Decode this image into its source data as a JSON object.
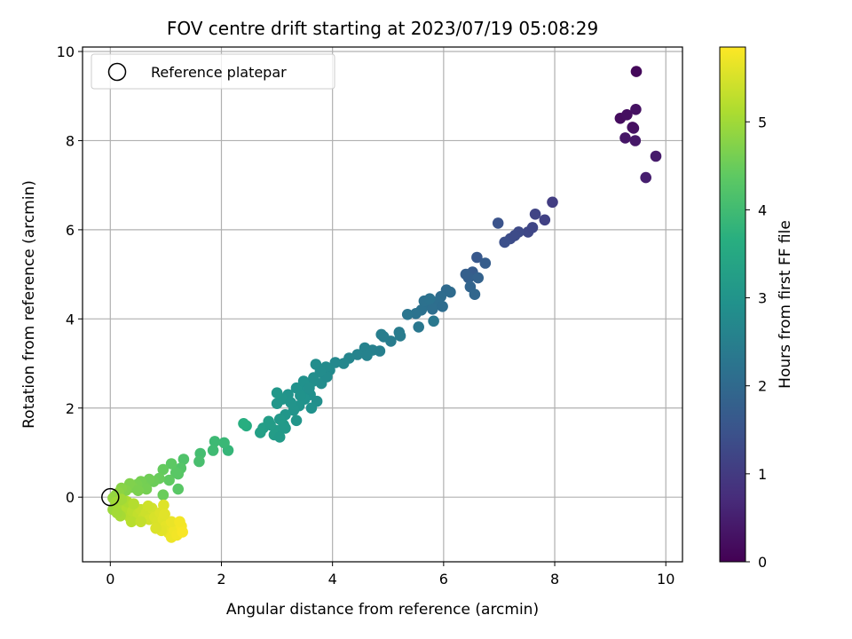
{
  "chart_data": {
    "type": "scatter",
    "title": "FOV centre drift starting at 2023/07/19 05:08:29",
    "xlabel": "Angular distance from reference (arcmin)",
    "ylabel": "Rotation from reference (arcmin)",
    "xlim": [
      -0.5,
      10.3
    ],
    "ylim": [
      -1.45,
      10.1
    ],
    "xticks": [
      0,
      2,
      4,
      6,
      8,
      10
    ],
    "yticks": [
      0,
      2,
      4,
      6,
      8,
      10
    ],
    "grid": true,
    "legend": {
      "placement": "top-left",
      "entries": [
        "Reference platepar"
      ]
    },
    "reference_point": {
      "x": 0,
      "y": 0
    },
    "colorbar": {
      "label": "Hours from first FF file",
      "range": [
        0,
        5.85
      ],
      "ticks": [
        0,
        1,
        2,
        3,
        4,
        5
      ],
      "colormap": "viridis"
    },
    "series": [
      {
        "values": [
          [
            9.47,
            9.55,
            0.12
          ],
          [
            9.18,
            8.5,
            0.18
          ],
          [
            9.3,
            8.58,
            0.22
          ],
          [
            9.46,
            8.7,
            0.27
          ],
          [
            9.42,
            8.28,
            0.3
          ],
          [
            9.27,
            8.06,
            0.34
          ],
          [
            9.45,
            8.0,
            0.38
          ],
          [
            9.82,
            7.65,
            0.44
          ],
          [
            9.64,
            7.17,
            0.48
          ],
          [
            9.4,
            8.3,
            0.25
          ],
          [
            7.96,
            6.62,
            1.05
          ],
          [
            7.82,
            6.22,
            1.12
          ],
          [
            7.65,
            6.35,
            1.18
          ],
          [
            7.52,
            5.95,
            1.24
          ],
          [
            7.35,
            5.95,
            1.3
          ],
          [
            7.2,
            5.8,
            1.36
          ],
          [
            7.1,
            5.72,
            1.42
          ],
          [
            6.98,
            6.15,
            1.48
          ],
          [
            7.6,
            6.05,
            1.22
          ],
          [
            7.28,
            5.87,
            1.33
          ],
          [
            6.6,
            5.38,
            1.6
          ],
          [
            6.52,
            5.05,
            1.68
          ],
          [
            6.75,
            5.25,
            1.72
          ],
          [
            6.45,
            4.92,
            1.78
          ],
          [
            6.62,
            4.92,
            1.82
          ],
          [
            6.48,
            4.72,
            1.88
          ],
          [
            6.56,
            4.55,
            1.94
          ],
          [
            6.4,
            5.0,
            1.75
          ],
          [
            6.05,
            4.65,
            2.02
          ],
          [
            5.95,
            4.5,
            2.06
          ],
          [
            5.88,
            4.38,
            2.1
          ],
          [
            5.72,
            4.32,
            2.14
          ],
          [
            5.6,
            4.2,
            2.18
          ],
          [
            5.5,
            4.12,
            2.22
          ],
          [
            5.35,
            4.1,
            2.26
          ],
          [
            5.8,
            4.22,
            2.12
          ],
          [
            5.65,
            4.4,
            2.16
          ],
          [
            5.55,
            3.82,
            2.3
          ],
          [
            5.82,
            3.95,
            2.34
          ],
          [
            6.12,
            4.6,
            2.04
          ],
          [
            5.98,
            4.28,
            2.08
          ],
          [
            5.75,
            4.45,
            2.2
          ],
          [
            5.2,
            3.7,
            2.4
          ],
          [
            5.05,
            3.5,
            2.44
          ],
          [
            4.88,
            3.65,
            2.48
          ],
          [
            4.72,
            3.3,
            2.52
          ],
          [
            4.58,
            3.35,
            2.56
          ],
          [
            4.45,
            3.2,
            2.6
          ],
          [
            4.3,
            3.12,
            2.64
          ],
          [
            4.2,
            3.0,
            2.68
          ],
          [
            4.85,
            3.28,
            2.5
          ],
          [
            4.62,
            3.18,
            2.58
          ],
          [
            5.22,
            3.62,
            2.42
          ],
          [
            4.92,
            3.6,
            2.46
          ],
          [
            4.05,
            3.02,
            2.72
          ],
          [
            3.95,
            2.85,
            2.76
          ],
          [
            3.85,
            2.75,
            2.8
          ],
          [
            3.7,
            2.98,
            2.84
          ],
          [
            3.65,
            2.6,
            2.88
          ],
          [
            3.55,
            2.5,
            2.9
          ],
          [
            3.45,
            2.4,
            2.92
          ],
          [
            3.35,
            2.45,
            2.95
          ],
          [
            3.2,
            2.3,
            2.98
          ],
          [
            3.1,
            2.2,
            3.02
          ],
          [
            3.0,
            2.1,
            3.05
          ],
          [
            3.8,
            2.55,
            2.82
          ],
          [
            3.9,
            2.7,
            2.78
          ],
          [
            3.6,
            2.3,
            2.9
          ],
          [
            3.5,
            2.2,
            2.94
          ],
          [
            3.4,
            2.05,
            2.97
          ],
          [
            3.3,
            1.95,
            3.0
          ],
          [
            3.15,
            1.85,
            3.06
          ],
          [
            3.05,
            1.75,
            3.1
          ],
          [
            3.72,
            2.15,
            2.88
          ],
          [
            3.62,
            2.0,
            2.93
          ],
          [
            3.25,
            2.12,
            3.0
          ],
          [
            3.0,
            2.34,
            3.08
          ],
          [
            3.35,
            1.72,
            3.03
          ],
          [
            3.48,
            2.6,
            2.92
          ],
          [
            3.58,
            2.45,
            2.89
          ],
          [
            3.66,
            2.68,
            2.86
          ],
          [
            3.88,
            2.92,
            2.79
          ],
          [
            3.78,
            2.82,
            2.81
          ],
          [
            3.42,
            2.28,
            2.96
          ],
          [
            3.12,
            1.62,
            3.14
          ],
          [
            2.98,
            1.5,
            3.18
          ],
          [
            2.85,
            1.7,
            3.22
          ],
          [
            2.75,
            1.55,
            3.26
          ],
          [
            2.95,
            1.4,
            3.2
          ],
          [
            3.05,
            1.35,
            3.16
          ],
          [
            2.7,
            1.45,
            3.28
          ],
          [
            3.15,
            1.55,
            3.12
          ],
          [
            2.88,
            1.62,
            3.2
          ],
          [
            2.45,
            1.6,
            3.6
          ],
          [
            2.4,
            1.65,
            3.65
          ],
          [
            2.12,
            1.05,
            3.85
          ],
          [
            2.05,
            1.22,
            3.9
          ],
          [
            1.88,
            1.25,
            3.95
          ],
          [
            1.85,
            1.05,
            3.98
          ],
          [
            1.62,
            0.98,
            4.05
          ],
          [
            1.6,
            0.8,
            4.1
          ],
          [
            1.32,
            0.85,
            4.2
          ],
          [
            1.27,
            0.65,
            4.25
          ],
          [
            1.22,
            0.52,
            4.3
          ],
          [
            1.18,
            0.55,
            4.32
          ],
          [
            1.1,
            0.75,
            4.36
          ],
          [
            1.06,
            0.38,
            4.4
          ],
          [
            0.95,
            0.62,
            4.44
          ],
          [
            0.88,
            0.42,
            4.48
          ],
          [
            0.78,
            0.35,
            4.52
          ],
          [
            0.7,
            0.4,
            4.55
          ],
          [
            0.6,
            0.25,
            4.58
          ],
          [
            0.55,
            0.35,
            4.6
          ],
          [
            0.48,
            0.28,
            4.64
          ],
          [
            0.4,
            0.22,
            4.68
          ],
          [
            0.35,
            0.3,
            4.7
          ],
          [
            0.28,
            0.15,
            4.74
          ],
          [
            0.2,
            0.2,
            4.78
          ],
          [
            0.15,
            0.1,
            4.82
          ],
          [
            0.1,
            0.05,
            4.86
          ],
          [
            0.05,
            -0.02,
            4.9
          ],
          [
            1.22,
            0.18,
            4.32
          ],
          [
            0.95,
            0.05,
            4.5
          ],
          [
            0.65,
            0.18,
            4.6
          ],
          [
            0.5,
            0.15,
            4.66
          ],
          [
            0.05,
            -0.28,
            4.95
          ],
          [
            0.1,
            -0.12,
            5.0
          ],
          [
            0.15,
            -0.2,
            5.04
          ],
          [
            0.2,
            -0.3,
            5.08
          ],
          [
            0.25,
            -0.38,
            5.12
          ],
          [
            0.3,
            -0.25,
            5.16
          ],
          [
            0.35,
            -0.45,
            5.2
          ],
          [
            0.4,
            -0.32,
            5.24
          ],
          [
            0.45,
            -0.5,
            5.28
          ],
          [
            0.5,
            -0.38,
            5.3
          ],
          [
            0.55,
            -0.28,
            5.34
          ],
          [
            0.6,
            -0.45,
            5.38
          ],
          [
            0.65,
            -0.35,
            5.4
          ],
          [
            0.7,
            -0.5,
            5.44
          ],
          [
            0.75,
            -0.25,
            5.46
          ],
          [
            0.8,
            -0.45,
            5.5
          ],
          [
            0.85,
            -0.55,
            5.52
          ],
          [
            0.3,
            -0.1,
            5.1
          ],
          [
            0.2,
            -0.05,
            5.02
          ],
          [
            0.38,
            -0.55,
            5.22
          ],
          [
            0.55,
            -0.55,
            5.32
          ],
          [
            0.68,
            -0.2,
            5.42
          ],
          [
            0.18,
            -0.42,
            5.06
          ],
          [
            0.12,
            -0.35,
            5.03
          ],
          [
            0.42,
            -0.15,
            5.18
          ],
          [
            0.9,
            -0.35,
            5.55
          ],
          [
            0.95,
            -0.5,
            5.58
          ],
          [
            1.0,
            -0.65,
            5.62
          ],
          [
            1.05,
            -0.8,
            5.66
          ],
          [
            1.1,
            -0.9,
            5.7
          ],
          [
            1.15,
            -0.75,
            5.72
          ],
          [
            1.2,
            -0.85,
            5.75
          ],
          [
            1.28,
            -0.65,
            5.78
          ],
          [
            1.3,
            -0.78,
            5.8
          ],
          [
            0.92,
            -0.75,
            5.6
          ],
          [
            0.96,
            -0.18,
            5.57
          ],
          [
            1.1,
            -0.55,
            5.68
          ],
          [
            1.25,
            -0.55,
            5.76
          ],
          [
            0.82,
            -0.7,
            5.54
          ],
          [
            0.98,
            -0.38,
            5.59
          ]
        ]
      }
    ]
  }
}
